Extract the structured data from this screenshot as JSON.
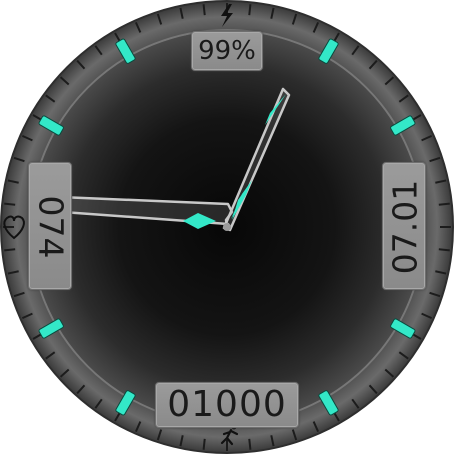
{
  "watch_face": {
    "battery": {
      "value": "99%",
      "icon": "lightning-bolt-icon"
    },
    "heart_rate": {
      "value": "074",
      "icon": "heart-icon"
    },
    "date": {
      "value": "07.01"
    },
    "steps": {
      "value": "01000",
      "icon": "running-person-icon"
    },
    "time": {
      "hours": 9,
      "minutes": 4
    },
    "colors": {
      "accent": "#33e8c8",
      "bezel": "#5a5a5a",
      "dial_center": "#0b0b0b",
      "plate": "#959595",
      "hand_outline": "#c8c8c8"
    }
  }
}
